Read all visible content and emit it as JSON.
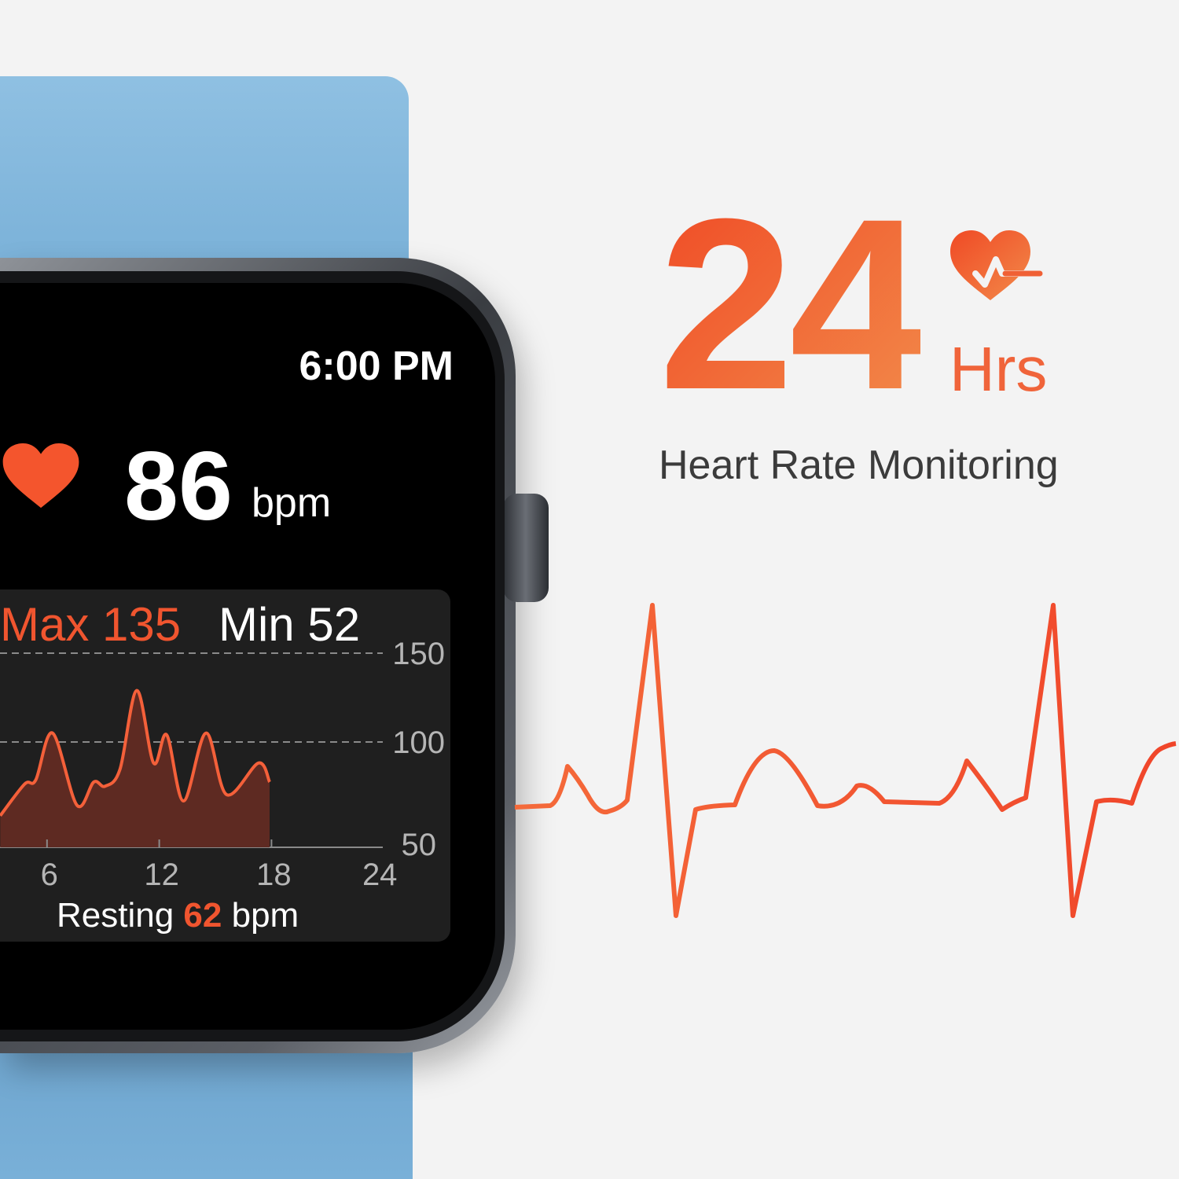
{
  "watch": {
    "time": "6:00 PM",
    "heart_rate": "86",
    "heart_rate_unit": "bpm",
    "max_label": "Max 135",
    "min_label": "Min 52",
    "resting_prefix": "Resting",
    "resting_value": "62",
    "resting_unit": "bpm",
    "icon": "heart-icon"
  },
  "promo": {
    "hours": "24",
    "hours_unit": "Hrs",
    "title": "Heart Rate Monitoring",
    "icon": "heart-pulse-icon"
  },
  "colors": {
    "accent": "#f0552f",
    "band": "#7fb3d9",
    "screen": "#000000",
    "panel": "#1f1f1f",
    "area_fill": "#5e2a22"
  },
  "chart_data": {
    "type": "area",
    "xlabel": "",
    "ylabel": "",
    "x_ticks": [
      "6",
      "12",
      "18",
      "24"
    ],
    "y_ticks": [
      "150",
      "100",
      "50"
    ],
    "xlim": [
      0,
      24
    ],
    "ylim": [
      50,
      150
    ],
    "grid": "dashed at 100 and 150",
    "x": [
      3.5,
      4.8,
      5.4,
      6.3,
      7.6,
      8.5,
      9.1,
      9.9,
      10.8,
      11.7,
      12.4,
      13.3,
      14.5,
      15.6,
      17.3,
      17.9
    ],
    "values": [
      65,
      80,
      82,
      105,
      70,
      81,
      79,
      87,
      129,
      90,
      104,
      72,
      105,
      75,
      90,
      81
    ]
  }
}
